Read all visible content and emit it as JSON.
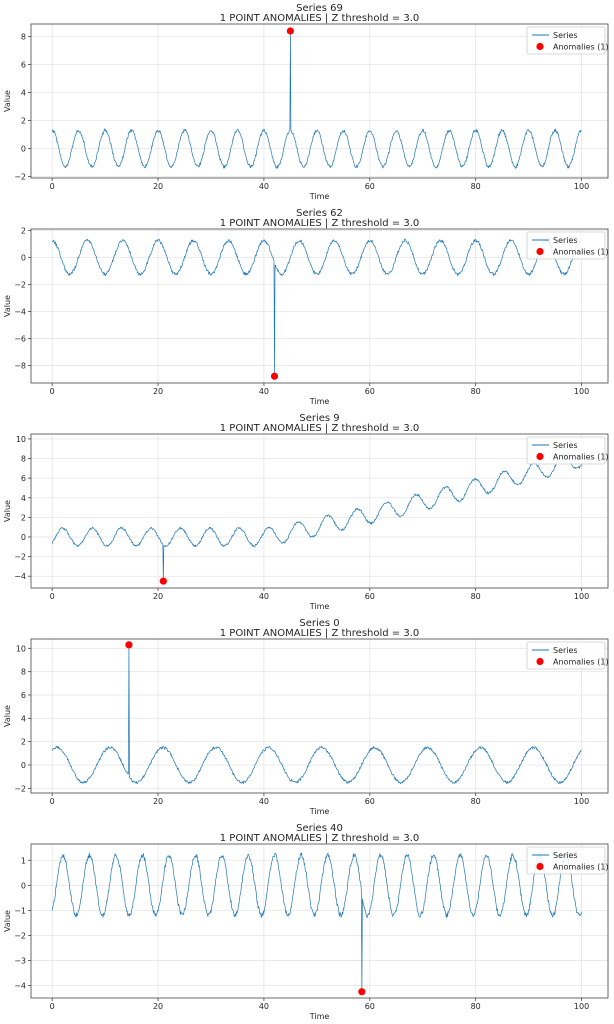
{
  "colors": {
    "series": "#1f77b4",
    "anomaly": "#ff0000"
  },
  "chart_data": [
    {
      "type": "line",
      "title": "Series 69",
      "subtitle": "1 POINT ANOMALIES | Z threshold = 3.0",
      "xlabel": "Time",
      "ylabel": "Value",
      "xlim": [
        -4,
        105
      ],
      "ylim": [
        -2.1,
        8.9
      ],
      "xticks": [
        0,
        20,
        40,
        60,
        80,
        100
      ],
      "yticks": [
        -2,
        0,
        2,
        4,
        6,
        8
      ],
      "grid": true,
      "legend_position": "top-right",
      "legend": [
        "Series",
        "Anomalies (1)"
      ],
      "signal": {
        "mode": "sine",
        "amplitude": 1.3,
        "cycles": 20,
        "phase": 1.57,
        "trend": 0,
        "noise": 0.12,
        "seed": 69,
        "samples": 1000
      },
      "anomalies": [
        {
          "x": 45.0,
          "y": 8.4
        }
      ]
    },
    {
      "type": "line",
      "title": "Series 62",
      "subtitle": "1 POINT ANOMALIES | Z threshold = 3.0",
      "xlabel": "Time",
      "ylabel": "Value",
      "xlim": [
        -4,
        105
      ],
      "ylim": [
        -9.3,
        2.1
      ],
      "xticks": [
        0,
        20,
        40,
        60,
        80,
        100
      ],
      "yticks": [
        -8,
        -6,
        -4,
        -2,
        0,
        2
      ],
      "grid": true,
      "legend_position": "top-right",
      "legend": [
        "Series",
        "Anomalies (1)"
      ],
      "signal": {
        "mode": "sine",
        "amplitude": 1.25,
        "cycles": 15,
        "phase": 1.57,
        "trend": 0,
        "noise": 0.12,
        "seed": 62,
        "samples": 1000
      },
      "anomalies": [
        {
          "x": 42.0,
          "y": -8.8
        }
      ]
    },
    {
      "type": "line",
      "title": "Series 9",
      "subtitle": "1 POINT ANOMALIES | Z threshold = 3.0",
      "xlabel": "Time",
      "ylabel": "Value",
      "xlim": [
        -4,
        105
      ],
      "ylim": [
        -5.2,
        10.5
      ],
      "xticks": [
        0,
        20,
        40,
        60,
        80,
        100
      ],
      "yticks": [
        -4,
        -2,
        0,
        2,
        4,
        6,
        8,
        10
      ],
      "grid": true,
      "legend_position": "top-right",
      "legend": [
        "Series",
        "Anomalies (1)"
      ],
      "signal": {
        "mode": "trend",
        "amplitude": 0.9,
        "cycles": 18,
        "phase": -0.7,
        "trend": 8.0,
        "trend_start": 40,
        "noise": 0.12,
        "seed": 9,
        "samples": 1000
      },
      "anomalies": [
        {
          "x": 21.0,
          "y": -4.5
        }
      ]
    },
    {
      "type": "line",
      "title": "Series 0",
      "subtitle": "1 POINT ANOMALIES | Z threshold = 3.0",
      "xlabel": "Time",
      "ylabel": "Value",
      "xlim": [
        -4,
        105
      ],
      "ylim": [
        -2.4,
        10.8
      ],
      "xticks": [
        0,
        20,
        40,
        60,
        80,
        100
      ],
      "yticks": [
        -2,
        0,
        2,
        4,
        6,
        8,
        10
      ],
      "grid": true,
      "legend_position": "top-right",
      "legend": [
        "Series",
        "Anomalies (1)"
      ],
      "signal": {
        "mode": "sine",
        "amplitude": 1.5,
        "cycles": 10,
        "phase": 1.0,
        "trend": 0,
        "noise": 0.12,
        "seed": 0,
        "samples": 1000
      },
      "anomalies": [
        {
          "x": 14.5,
          "y": 10.3
        }
      ]
    },
    {
      "type": "line",
      "title": "Series 40",
      "subtitle": "1 POINT ANOMALIES | Z threshold = 3.0",
      "xlabel": "Time",
      "ylabel": "Value",
      "xlim": [
        -4,
        105
      ],
      "ylim": [
        -4.5,
        1.65
      ],
      "xticks": [
        0,
        20,
        40,
        60,
        80,
        100
      ],
      "yticks": [
        -4,
        -3,
        -2,
        -1,
        0,
        1
      ],
      "grid": true,
      "legend_position": "top-right",
      "legend": [
        "Series",
        "Anomalies (1)"
      ],
      "signal": {
        "mode": "sine",
        "amplitude": 1.2,
        "cycles": 20,
        "phase": -1.0,
        "trend": 0,
        "noise": 0.1,
        "seed": 40,
        "samples": 1000
      },
      "anomalies": [
        {
          "x": 58.5,
          "y": -4.25
        }
      ]
    }
  ]
}
